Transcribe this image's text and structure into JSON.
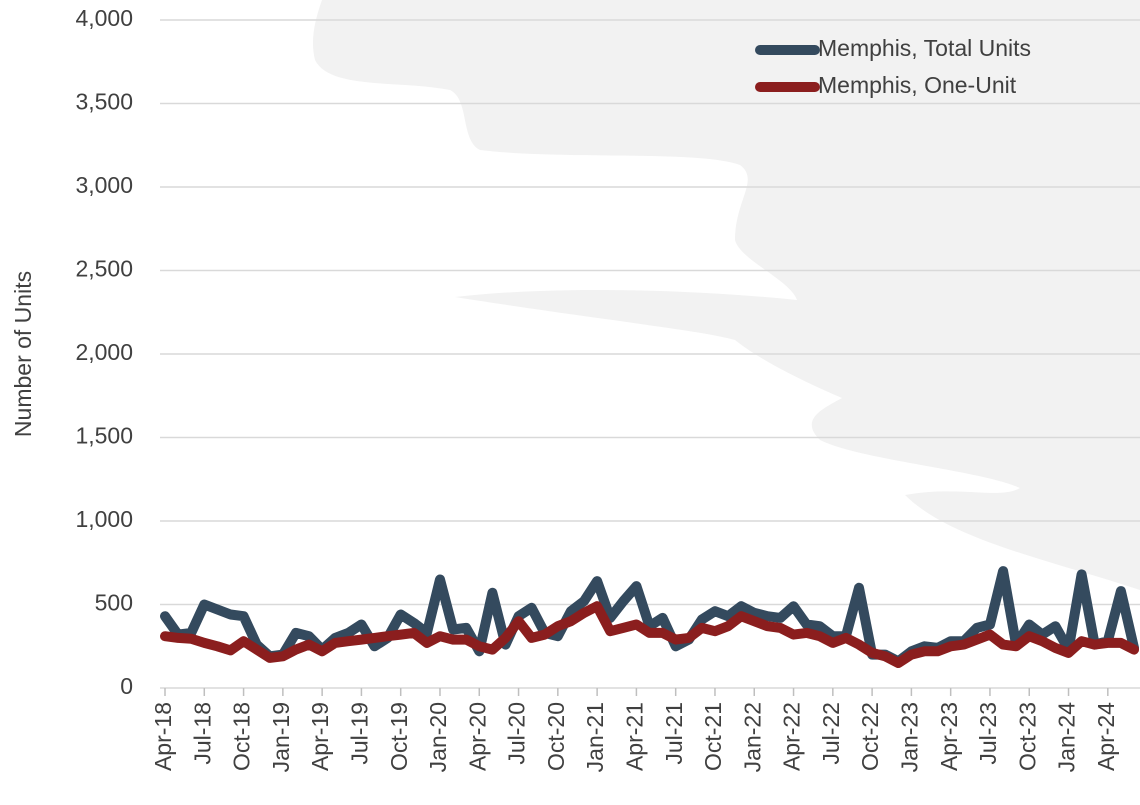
{
  "chart_data": {
    "type": "line",
    "y_label": "Number of Units",
    "categories": [
      "Apr-18",
      null,
      null,
      "Jul-18",
      null,
      null,
      "Oct-18",
      null,
      null,
      "Jan-19",
      null,
      null,
      "Apr-19",
      null,
      null,
      "Jul-19",
      null,
      null,
      "Oct-19",
      null,
      null,
      "Jan-20",
      null,
      null,
      "Apr-20",
      null,
      null,
      "Jul-20",
      null,
      null,
      "Oct-20",
      null,
      null,
      "Jan-21",
      null,
      null,
      "Apr-21",
      null,
      null,
      "Jul-21",
      null,
      null,
      "Oct-21",
      null,
      null,
      "Jan-22",
      null,
      null,
      "Apr-22",
      null,
      null,
      "Jul-22",
      null,
      null,
      "Oct-22",
      null,
      null,
      "Jan-23",
      null,
      null,
      "Apr-23",
      null,
      null,
      "Jul-23",
      null,
      null,
      "Oct-23",
      null,
      null,
      "Jan-24",
      null,
      null,
      "Apr-24",
      null,
      null
    ],
    "series": [
      {
        "name": "Memphis, Total Units",
        "color": "#344a5e",
        "values": [
          430,
          320,
          330,
          500,
          470,
          440,
          430,
          260,
          190,
          200,
          330,
          310,
          230,
          300,
          330,
          380,
          250,
          300,
          440,
          390,
          330,
          650,
          350,
          360,
          220,
          570,
          260,
          430,
          480,
          330,
          310,
          460,
          520,
          640,
          420,
          520,
          610,
          370,
          420,
          250,
          290,
          410,
          460,
          430,
          490,
          450,
          430,
          420,
          490,
          380,
          370,
          310,
          310,
          600,
          200,
          200,
          160,
          220,
          250,
          240,
          280,
          280,
          360,
          380,
          700,
          260,
          380,
          320,
          370,
          230,
          680,
          260,
          280,
          580,
          240
        ]
      },
      {
        "name": "Memphis, One-Unit",
        "color": "#8b1e1e",
        "values": [
          310,
          300,
          295,
          270,
          250,
          225,
          280,
          230,
          180,
          190,
          230,
          260,
          220,
          270,
          280,
          290,
          300,
          310,
          320,
          330,
          270,
          310,
          290,
          290,
          250,
          230,
          300,
          400,
          300,
          320,
          370,
          400,
          450,
          490,
          340,
          360,
          380,
          330,
          330,
          290,
          300,
          360,
          340,
          370,
          430,
          400,
          370,
          360,
          320,
          330,
          310,
          270,
          300,
          260,
          210,
          190,
          150,
          200,
          220,
          220,
          250,
          260,
          290,
          320,
          260,
          250,
          310,
          280,
          240,
          210,
          280,
          260,
          270,
          270,
          230
        ]
      }
    ],
    "ylim": [
      0,
      4000
    ],
    "yticks": [
      0,
      {
        "value": 500,
        "label": "500"
      },
      {
        "value": 1000,
        "label": "1,000"
      },
      {
        "value": 1500,
        "label": "1,500"
      },
      {
        "value": 2000,
        "label": "2,000"
      },
      {
        "value": 2500,
        "label": "2,500"
      },
      {
        "value": 3000,
        "label": "3,000"
      },
      {
        "value": 3500,
        "label": "3,500"
      },
      {
        "value": 4000,
        "label": "4,000"
      }
    ],
    "grid": true,
    "legend": "top-right"
  }
}
